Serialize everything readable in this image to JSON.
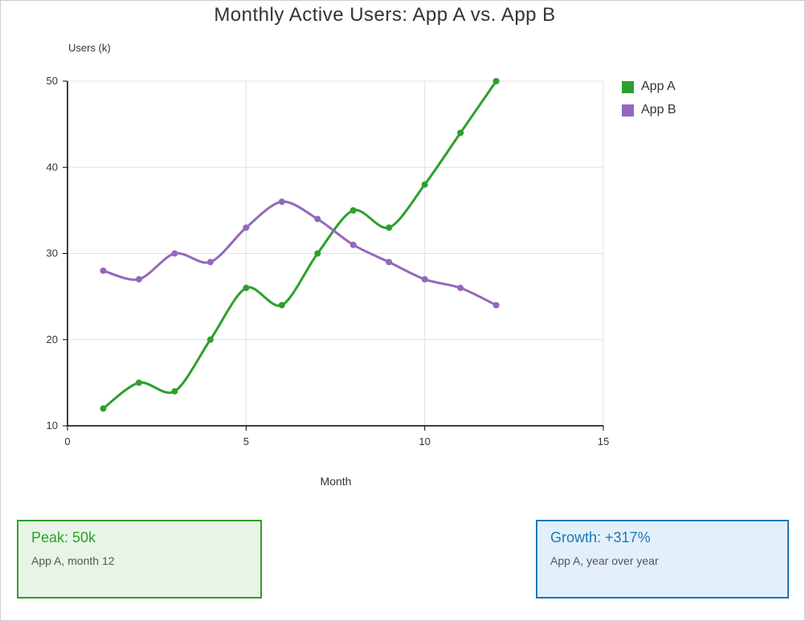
{
  "chart_data": {
    "type": "line",
    "title": "Monthly Active Users: App A vs. App B",
    "xlabel": "Month",
    "ylabel": "Users (k)",
    "xlim": [
      0,
      15
    ],
    "ylim": [
      10,
      50
    ],
    "xticks": [
      0,
      5,
      10,
      15
    ],
    "yticks": [
      10,
      20,
      30,
      40,
      50
    ],
    "grid": true,
    "legend_position": "right",
    "x": [
      1,
      2,
      3,
      4,
      5,
      6,
      7,
      8,
      9,
      10,
      11,
      12
    ],
    "series": [
      {
        "name": "App A",
        "color": "#2ca02c",
        "values": [
          12,
          15,
          14,
          20,
          26,
          24,
          30,
          35,
          33,
          38,
          44,
          50
        ]
      },
      {
        "name": "App B",
        "color": "#9467bd",
        "values": [
          28,
          27,
          30,
          29,
          33,
          36,
          34,
          31,
          29,
          27,
          26,
          24
        ]
      }
    ]
  },
  "cards": {
    "peak": {
      "value": "Peak: 50k",
      "description": "App A, month 12"
    },
    "growth": {
      "value": "Growth: +317%",
      "description": "App A, year over year"
    }
  }
}
